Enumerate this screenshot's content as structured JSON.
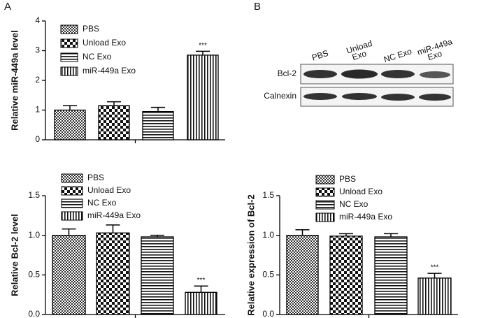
{
  "panels": [
    "A",
    "B"
  ],
  "blot": {
    "lanes": [
      [
        "PBS"
      ],
      [
        "Unload",
        "Exo"
      ],
      [
        "NC Exo"
      ],
      [
        "miR-449a",
        "Exo"
      ]
    ],
    "rows": [
      "Bcl-2",
      "Calnexin"
    ]
  },
  "chart_data": [
    {
      "type": "bar",
      "ylabel": "Relative miR-449a level",
      "categories": [
        "PBS",
        "Unload Exo",
        "NC Exo",
        "miR-449a Exo"
      ],
      "values": [
        1.0,
        1.15,
        0.95,
        2.85
      ],
      "errors": [
        0.15,
        0.13,
        0.14,
        0.13
      ],
      "annotation": "***",
      "ylim": [
        0,
        4
      ],
      "yticks": [
        0,
        1,
        2,
        3,
        4
      ]
    },
    {
      "type": "bar",
      "ylabel": "Relative Bcl-2 level",
      "categories": [
        "PBS",
        "Unload Exo",
        "NC Exo",
        "miR-449a Exo"
      ],
      "values": [
        1.0,
        1.03,
        0.98,
        0.28
      ],
      "errors": [
        0.08,
        0.1,
        0.02,
        0.08
      ],
      "annotation": "***",
      "ylim": [
        0,
        1.5
      ],
      "yticks": [
        {
          "value": 0,
          "label": "0.0"
        },
        {
          "value": 0.5,
          "label": "0.5"
        },
        {
          "value": 1,
          "label": "1.0"
        },
        {
          "value": 1.5,
          "label": "1.5"
        }
      ]
    },
    {
      "type": "bar",
      "ylabel": "Relative expression of Bcl-2",
      "categories": [
        "PBS",
        "Unload Exo",
        "NC Exo",
        "miR-449a Exo"
      ],
      "values": [
        1.0,
        0.99,
        0.98,
        0.46
      ],
      "errors": [
        0.07,
        0.03,
        0.04,
        0.06
      ],
      "annotation": "***",
      "ylim": [
        0,
        1.5
      ],
      "yticks": [
        {
          "value": 0,
          "label": "0.0"
        },
        {
          "value": 0.5,
          "label": "0.5"
        },
        {
          "value": 1,
          "label": "1.0"
        },
        {
          "value": 1.5,
          "label": "1.5"
        }
      ]
    }
  ]
}
